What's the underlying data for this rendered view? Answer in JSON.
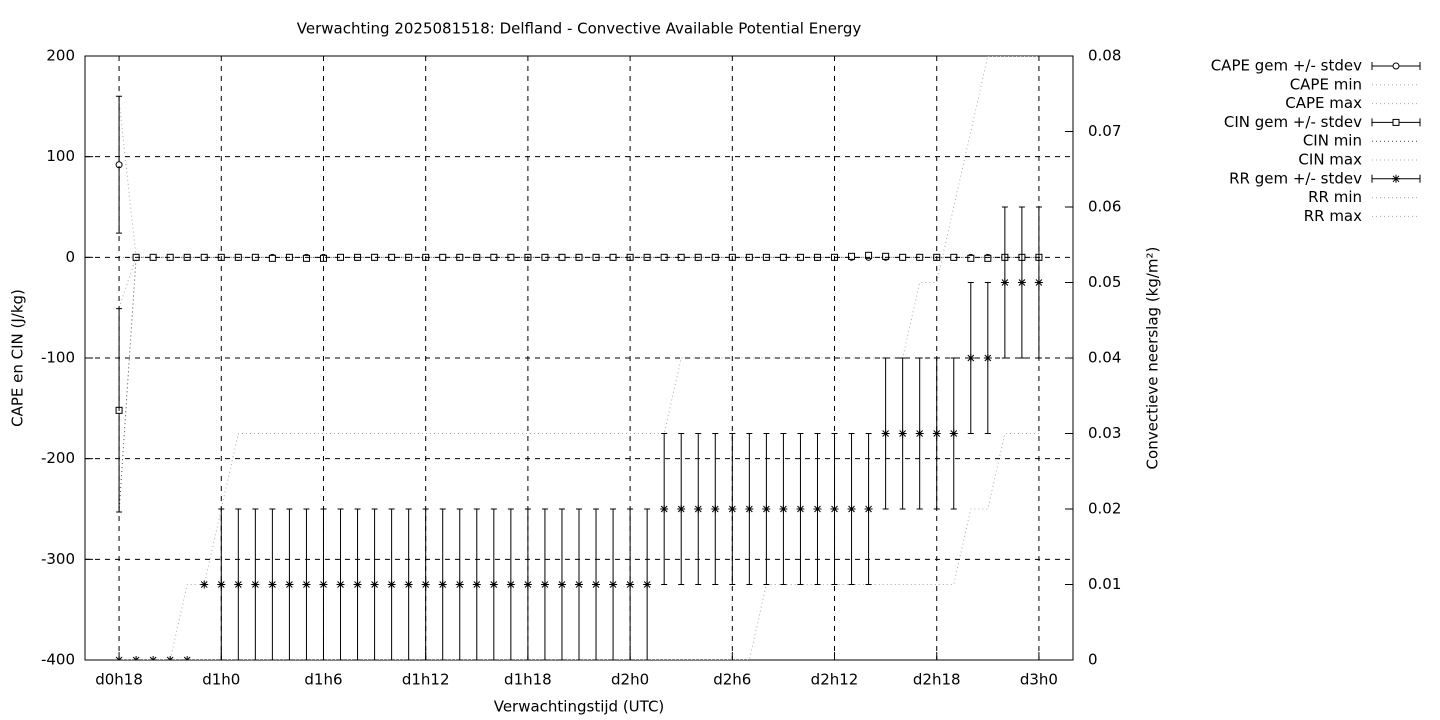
{
  "chart_data": {
    "type": "errorbar",
    "title": "Verwachting 2025081518: Delfland - Convective Available Potential Energy",
    "x_label": "Verwachtingstijd (UTC)",
    "y_label": "CAPE en CIN (J/kg)",
    "y2_label": "Convectieve neerslag (kg/m²)",
    "x": [
      18,
      19,
      20,
      21,
      22,
      23,
      24,
      25,
      26,
      27,
      28,
      29,
      30,
      31,
      32,
      33,
      34,
      35,
      36,
      37,
      38,
      39,
      40,
      41,
      42,
      43,
      44,
      45,
      46,
      47,
      48,
      49,
      50,
      51,
      52,
      53,
      54,
      55,
      56,
      57,
      58,
      59,
      60,
      61,
      62,
      63,
      64,
      65,
      66,
      67,
      68,
      69,
      70,
      71,
      72
    ],
    "xlim": [
      16,
      74
    ],
    "xticks": [
      {
        "value": 18,
        "label": "d0h18"
      },
      {
        "value": 24,
        "label": "d1h0"
      },
      {
        "value": 30,
        "label": "d1h6"
      },
      {
        "value": 36,
        "label": "d1h12"
      },
      {
        "value": 42,
        "label": "d1h18"
      },
      {
        "value": 48,
        "label": "d2h0"
      },
      {
        "value": 54,
        "label": "d2h6"
      },
      {
        "value": 60,
        "label": "d2h12"
      },
      {
        "value": 66,
        "label": "d2h18"
      },
      {
        "value": 72,
        "label": "d3h0"
      }
    ],
    "ylim": [
      -400,
      200
    ],
    "yticks": [
      -400,
      -300,
      -200,
      -100,
      0,
      100,
      200
    ],
    "y2lim": [
      0,
      0.08
    ],
    "y2ticks": [
      0,
      0.01,
      0.02,
      0.03,
      0.04,
      0.05,
      0.06,
      0.07,
      0.08
    ],
    "grid": true,
    "legend": "outside-top-right",
    "series": [
      {
        "name": "CAPE gem +/- stdev",
        "color": "#000000",
        "marker": "circle",
        "values": [
          92,
          0,
          0,
          0,
          0,
          0,
          0,
          0,
          0,
          0,
          0,
          0,
          0,
          0,
          0,
          0,
          0,
          0,
          0,
          0,
          0,
          0,
          0,
          0,
          0,
          0,
          0,
          0,
          0,
          0,
          0,
          0,
          0,
          0,
          0,
          0,
          0,
          0,
          0,
          0,
          0,
          0,
          0,
          0,
          0,
          0,
          0,
          0,
          0,
          0,
          0,
          0,
          0,
          0,
          0
        ],
        "errors": [
          68,
          0,
          0,
          0,
          0,
          0,
          0,
          0,
          0,
          0,
          0,
          0,
          0,
          0,
          0,
          0,
          0,
          0,
          0,
          0,
          0,
          0,
          0,
          0,
          0,
          0,
          0,
          0,
          0,
          0,
          0,
          0,
          0,
          0,
          0,
          0,
          0,
          0,
          0,
          0,
          0,
          0,
          0,
          0,
          0,
          0,
          0,
          0,
          0,
          0,
          0,
          0,
          0,
          0,
          0
        ]
      },
      {
        "name": "CAPE min",
        "color": "#aaaaaa",
        "dash": "dotted",
        "values": [
          0,
          0,
          0,
          0,
          0,
          0,
          0,
          0,
          0,
          0,
          0,
          0,
          0,
          0,
          0,
          0,
          0,
          0,
          0,
          0,
          0,
          0,
          0,
          0,
          0,
          0,
          0,
          0,
          0,
          0,
          0,
          0,
          0,
          0,
          0,
          0,
          0,
          0,
          0,
          0,
          0,
          0,
          0,
          0,
          0,
          0,
          0,
          0,
          0,
          0,
          0,
          0,
          0,
          0,
          0
        ]
      },
      {
        "name": "CAPE max",
        "color": "#aaaaaa",
        "dash": "dotted",
        "values": [
          156,
          0,
          0,
          0,
          0,
          0,
          0,
          0,
          0,
          0,
          0,
          0,
          0,
          0,
          0,
          0,
          0,
          0,
          0,
          0,
          0,
          0,
          0,
          0,
          0,
          0,
          0,
          0,
          0,
          0,
          0,
          0,
          0,
          0,
          0,
          0,
          0,
          0,
          0,
          0,
          0,
          0,
          0,
          0,
          0,
          0,
          0,
          0,
          0,
          0,
          0,
          0,
          0,
          0,
          0
        ]
      },
      {
        "name": "CIN gem +/- stdev",
        "color": "#000000",
        "marker": "square",
        "values": [
          -152,
          0,
          0,
          0,
          0,
          0,
          0,
          0,
          0,
          -1,
          0,
          -1,
          -1,
          0,
          0,
          0,
          0,
          0,
          0,
          0,
          0,
          0,
          0,
          0,
          0,
          0,
          0,
          0,
          0,
          0,
          0,
          0,
          0,
          0,
          0,
          0,
          0,
          0,
          0,
          0,
          0,
          0,
          0,
          1,
          2,
          1,
          0,
          0,
          0,
          0,
          -1,
          -1,
          0,
          0,
          0
        ],
        "errors": [
          101,
          0,
          0,
          0,
          0,
          0,
          0,
          0,
          0,
          0,
          0,
          0,
          0,
          0,
          0,
          0,
          0,
          0,
          0,
          0,
          0,
          0,
          0,
          0,
          0,
          0,
          0,
          0,
          0,
          0,
          0,
          0,
          0,
          0,
          0,
          0,
          0,
          0,
          0,
          0,
          0,
          0,
          0,
          0,
          0,
          0,
          0,
          0,
          0,
          0,
          0,
          0,
          0,
          0,
          0
        ]
      },
      {
        "name": "CIN min",
        "color": "#444444",
        "dash": "dotted",
        "values": [
          -253,
          0,
          0,
          0,
          0,
          0,
          0,
          0,
          0,
          0,
          0,
          0,
          0,
          0,
          0,
          0,
          0,
          0,
          0,
          0,
          0,
          0,
          0,
          0,
          0,
          0,
          0,
          0,
          0,
          0,
          0,
          0,
          0,
          0,
          0,
          0,
          0,
          0,
          0,
          0,
          0,
          0,
          0,
          0,
          0,
          0,
          0,
          0,
          0,
          0,
          0,
          0,
          0,
          0,
          0
        ]
      },
      {
        "name": "CIN max",
        "color": "#aaaaaa",
        "dash": "dotted",
        "values": [
          -50,
          0,
          0,
          0,
          0,
          0,
          0,
          0,
          0,
          0,
          0,
          0,
          0,
          0,
          0,
          0,
          0,
          0,
          0,
          0,
          0,
          0,
          0,
          0,
          0,
          0,
          0,
          0,
          0,
          0,
          0,
          0,
          0,
          0,
          0,
          0,
          0,
          0,
          0,
          0,
          0,
          0,
          0,
          0,
          0,
          0,
          0,
          0,
          0,
          0,
          0,
          0,
          0,
          0,
          0
        ]
      },
      {
        "name": "RR gem +/- stdev",
        "color": "#000000",
        "marker": "star",
        "axis": "y2",
        "values": [
          0,
          0,
          0,
          0,
          0,
          0.01,
          0.01,
          0.01,
          0.01,
          0.01,
          0.01,
          0.01,
          0.01,
          0.01,
          0.01,
          0.01,
          0.01,
          0.01,
          0.01,
          0.01,
          0.01,
          0.01,
          0.01,
          0.01,
          0.01,
          0.01,
          0.01,
          0.01,
          0.01,
          0.01,
          0.01,
          0.01,
          0.02,
          0.02,
          0.02,
          0.02,
          0.02,
          0.02,
          0.02,
          0.02,
          0.02,
          0.02,
          0.02,
          0.02,
          0.02,
          0.03,
          0.03,
          0.03,
          0.03,
          0.03,
          0.04,
          0.04,
          0.05,
          0.05,
          0.05
        ],
        "errors": [
          0,
          0,
          0,
          0,
          0,
          0,
          0.01,
          0.01,
          0.01,
          0.01,
          0.01,
          0.01,
          0.01,
          0.01,
          0.01,
          0.01,
          0.01,
          0.01,
          0.01,
          0.01,
          0.01,
          0.01,
          0.01,
          0.01,
          0.01,
          0.01,
          0.01,
          0.01,
          0.01,
          0.01,
          0.01,
          0.01,
          0.01,
          0.01,
          0.01,
          0.01,
          0.01,
          0.01,
          0.01,
          0.01,
          0.01,
          0.01,
          0.01,
          0.01,
          0.01,
          0.01,
          0.01,
          0.01,
          0.01,
          0.01,
          0.01,
          0.01,
          0.01,
          0.01,
          0.01
        ]
      },
      {
        "name": "RR min",
        "color": "#aaaaaa",
        "dash": "dotted",
        "axis": "y2",
        "values": [
          0,
          0,
          0,
          0,
          0,
          0,
          0,
          0,
          0,
          0,
          0,
          0,
          0,
          0,
          0,
          0,
          0,
          0,
          0,
          0,
          0,
          0,
          0,
          0,
          0,
          0,
          0,
          0,
          0,
          0,
          0,
          0,
          0,
          0,
          0,
          0,
          0,
          0,
          0.01,
          0.01,
          0.01,
          0.01,
          0.01,
          0.01,
          0.01,
          0.01,
          0.01,
          0.01,
          0.01,
          0.01,
          0.02,
          0.02,
          0.03,
          0.03,
          0.03
        ]
      },
      {
        "name": "RR max",
        "color": "#aaaaaa",
        "dash": "dotted",
        "axis": "y2",
        "values": [
          0,
          0,
          0,
          0,
          0.01,
          0.01,
          0.02,
          0.03,
          0.03,
          0.03,
          0.03,
          0.03,
          0.03,
          0.03,
          0.03,
          0.03,
          0.03,
          0.03,
          0.03,
          0.03,
          0.03,
          0.03,
          0.03,
          0.03,
          0.03,
          0.03,
          0.03,
          0.03,
          0.03,
          0.03,
          0.03,
          0.03,
          0.03,
          0.04,
          0.04,
          0.04,
          0.04,
          0.04,
          0.04,
          0.04,
          0.04,
          0.04,
          0.04,
          0.04,
          0.04,
          0.04,
          0.04,
          0.05,
          0.05,
          0.06,
          0.07,
          0.08,
          0.08,
          0.08,
          0.08
        ]
      }
    ]
  }
}
